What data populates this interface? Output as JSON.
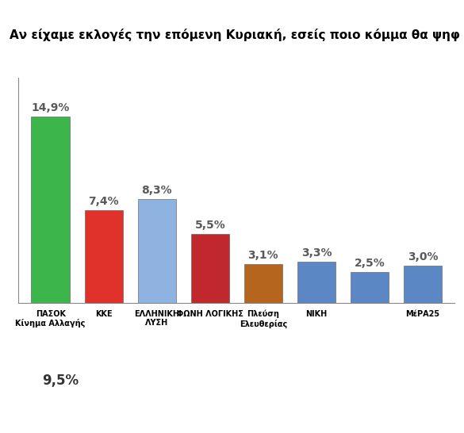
{
  "chart_data": {
    "type": "bar",
    "title": "Αν είχαμε εκλογές την επόμενη Κυριακή, εσείς ποιο κόμμα θα ψηφ",
    "categories": [
      "ΠΑΣΟΚ\nΚίνημα Αλλαγής",
      "ΚΚΕ",
      "ΕΛΛΗΝΙΚΗ\nΛΥΣΗ",
      "ΦΩΝΗ ΛΟΓΙΚΗΣ",
      "Πλεύση\nΕλευθερίας",
      "ΝΙΚΗ",
      null,
      "ΜέΡΑ25"
    ],
    "values": [
      14.9,
      7.4,
      8.3,
      5.5,
      3.1,
      3.3,
      2.5,
      3.0
    ],
    "value_labels": [
      "14,9%",
      "7,4%",
      "8,3%",
      "5,5%",
      "3,1%",
      "3,3%",
      "2,5%",
      "3,0%"
    ],
    "colors": [
      "#3cb54a",
      "#e0312b",
      "#8fb3e0",
      "#c0282d",
      "#b5651d",
      "#5b87c5",
      "#5b87c5",
      "#5b87c5"
    ],
    "ylim": [
      0,
      18
    ],
    "yticks": [],
    "grid": false,
    "data_labels": true,
    "tick_labels": "x",
    "annotations": [
      "9,5%"
    ]
  }
}
